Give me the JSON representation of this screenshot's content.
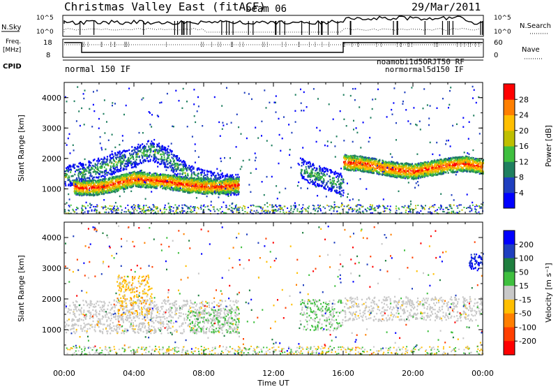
{
  "header": {
    "title": "Christmas Valley East (fitACF)",
    "beam": "beam 06",
    "date": "29/Mar/2011"
  },
  "summary_panel": {
    "nsky_label": "N.Sky",
    "nsky_ticks": [
      "10^5",
      "10^0"
    ],
    "nsearch_label": "N.Search",
    "freq_label_line1": "Freq.",
    "freq_label_line2": "[MHz]",
    "freq_ticks": [
      "18",
      "8"
    ],
    "nave_ticks": [
      "60",
      "0"
    ],
    "nave_label": "Nave",
    "cpid_label": "CPID",
    "cpid_main": "normal 150 IF",
    "cpid_right_upper": "noamobi1d5ORJT50 RF",
    "cpid_right_lower": "normormal5d150 IF"
  },
  "chart_data": [
    {
      "type": "heatmap",
      "title": "",
      "xlabel": "",
      "ylabel": "Slant Range [km]",
      "xlim": [
        0,
        24
      ],
      "ylim": [
        180,
        4500
      ],
      "yticks": [
        "1000",
        "2000",
        "3000",
        "4000"
      ],
      "colorbar": {
        "label": "Power [dB]",
        "ticks": [
          "4",
          "8",
          "12",
          "16",
          "20",
          "24",
          "28"
        ],
        "colors": [
          "#0000ff",
          "#1f3fbf",
          "#1f7f5f",
          "#3fbf3f",
          "#bfbf00",
          "#ffbf00",
          "#ff7f00",
          "#ff0000"
        ]
      },
      "bands": [
        {
          "name": "",
          "points": [
            [
              0.0,
              1450
            ],
            [
              1.0,
              1550
            ],
            [
              2.0,
              1700
            ],
            [
              3.0,
              1900
            ],
            [
              4.0,
              2100
            ],
            [
              5.0,
              2300
            ],
            [
              6.0,
              2000
            ],
            [
              7.0,
              1500
            ],
            [
              8.0,
              1300
            ],
            [
              9.0,
              1200
            ],
            [
              10.0,
              1150
            ]
          ]
        },
        {
          "name": "",
          "points": [
            [
              0.5,
              1100
            ],
            [
              1.0,
              1050
            ],
            [
              2.0,
              1080
            ],
            [
              3.0,
              1200
            ],
            [
              4.0,
              1350
            ],
            [
              5.0,
              1300
            ],
            [
              6.0,
              1250
            ],
            [
              7.0,
              1150
            ],
            [
              8.0,
              1100
            ],
            [
              9.0,
              1100
            ],
            [
              10.0,
              1150
            ]
          ]
        },
        {
          "name": "",
          "points": [
            [
              13.5,
              1700
            ],
            [
              14.5,
              1450
            ],
            [
              15.5,
              1250
            ],
            [
              16.0,
              1150
            ]
          ]
        },
        {
          "name": "",
          "points": [
            [
              16.0,
              1900
            ],
            [
              17.0,
              1850
            ],
            [
              18.0,
              1750
            ],
            [
              19.0,
              1650
            ],
            [
              20.0,
              1600
            ],
            [
              21.0,
              1700
            ],
            [
              22.0,
              1800
            ],
            [
              23.0,
              1850
            ],
            [
              24.0,
              1750
            ]
          ]
        }
      ]
    },
    {
      "type": "heatmap",
      "title": "",
      "xlabel": "Time UT",
      "ylabel": "Slant Range [km]",
      "xlim": [
        0,
        24
      ],
      "ylim": [
        180,
        4500
      ],
      "yticks": [
        "1000",
        "2000",
        "3000",
        "4000"
      ],
      "xticks": [
        "00:00",
        "04:00",
        "08:00",
        "12:00",
        "16:00",
        "20:00",
        "00:00"
      ],
      "colorbar": {
        "label": "Velocity [m s⁻¹]",
        "ticks": [
          "200",
          "100",
          "50",
          "15",
          "-15",
          "-50",
          "-100",
          "-200"
        ],
        "colors": [
          "#0000ff",
          "#1f3fbf",
          "#1f7f3f",
          "#3fbf3f",
          "#c8c8c8",
          "#ffbf00",
          "#ff7f00",
          "#ff3f00",
          "#ff0000"
        ]
      },
      "regions": [
        {
          "name": "",
          "x": [
            0,
            10
          ],
          "y": [
            900,
            2000
          ]
        },
        {
          "name": "",
          "x": [
            7,
            10
          ],
          "y": [
            900,
            1700
          ]
        },
        {
          "name": "",
          "x": [
            13.5,
            16
          ],
          "y": [
            1000,
            2000
          ]
        },
        {
          "name": "",
          "x": [
            16,
            24
          ],
          "y": [
            1300,
            2100
          ]
        },
        {
          "name": "",
          "x": [
            3,
            5
          ],
          "y": [
            1500,
            2800
          ]
        }
      ]
    }
  ]
}
